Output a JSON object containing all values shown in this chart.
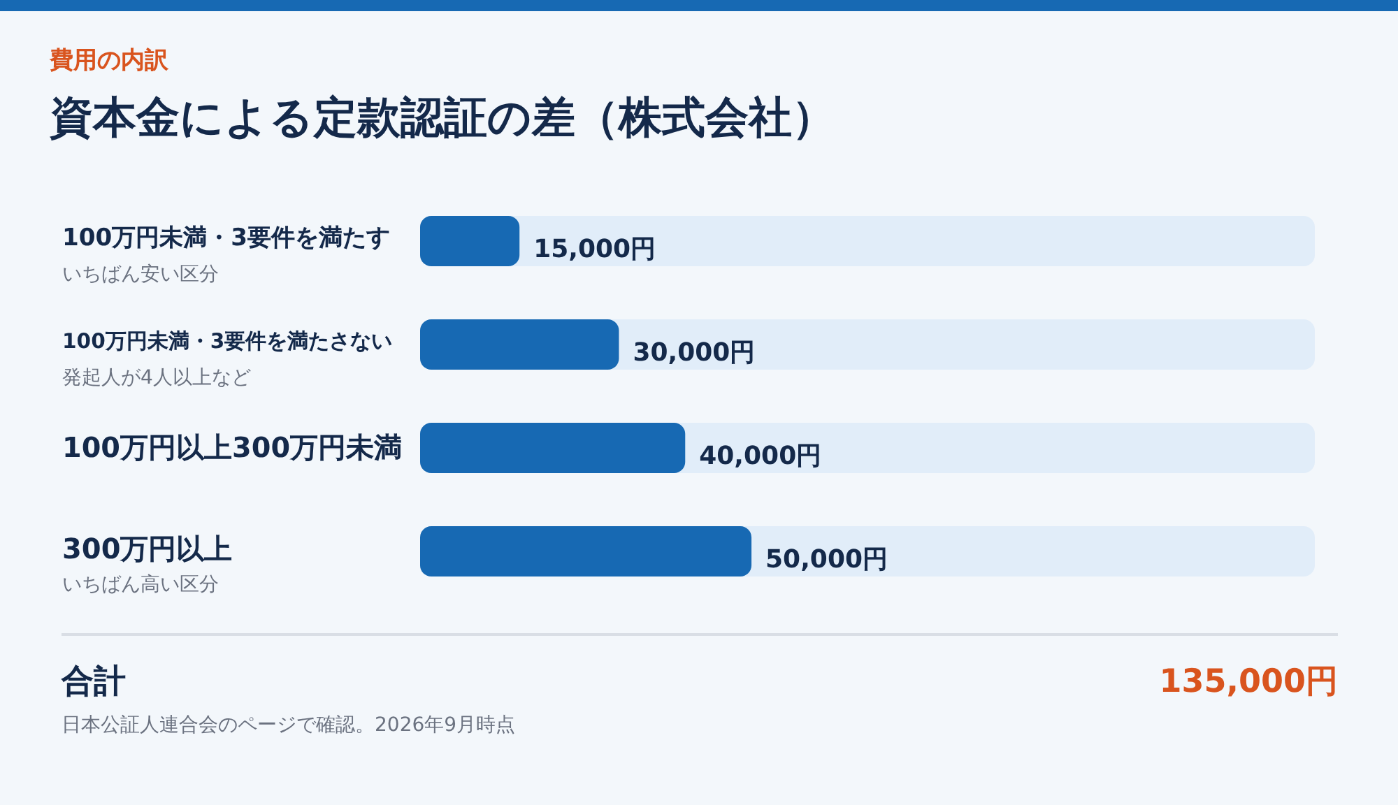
{
  "chart_data": {
    "type": "bar",
    "orientation": "horizontal",
    "subtitle": "費用の内訳",
    "title": "資本金による定款認証の差（株式会社）",
    "categories": [
      "100万円未満・3要件を満たす",
      "100万円未満・3要件を満たさない",
      "100万円以上300万円未満",
      "300万円以上"
    ],
    "values": [
      15000,
      30000,
      40000,
      50000
    ],
    "color": "#1769b3",
    "value_labels": [
      "15,000円",
      "30,000円",
      "40,000円",
      "50,000円"
    ],
    "xlim": [
      0,
      135000
    ],
    "tick_labels": "y",
    "annotations": [
      "いちばん安い区分",
      "発起人が4人以上など",
      "いちばん高い区分",
      "合計",
      "135,000円",
      "日本公証人連合会のページで確認。2026年9月時点"
    ]
  }
}
